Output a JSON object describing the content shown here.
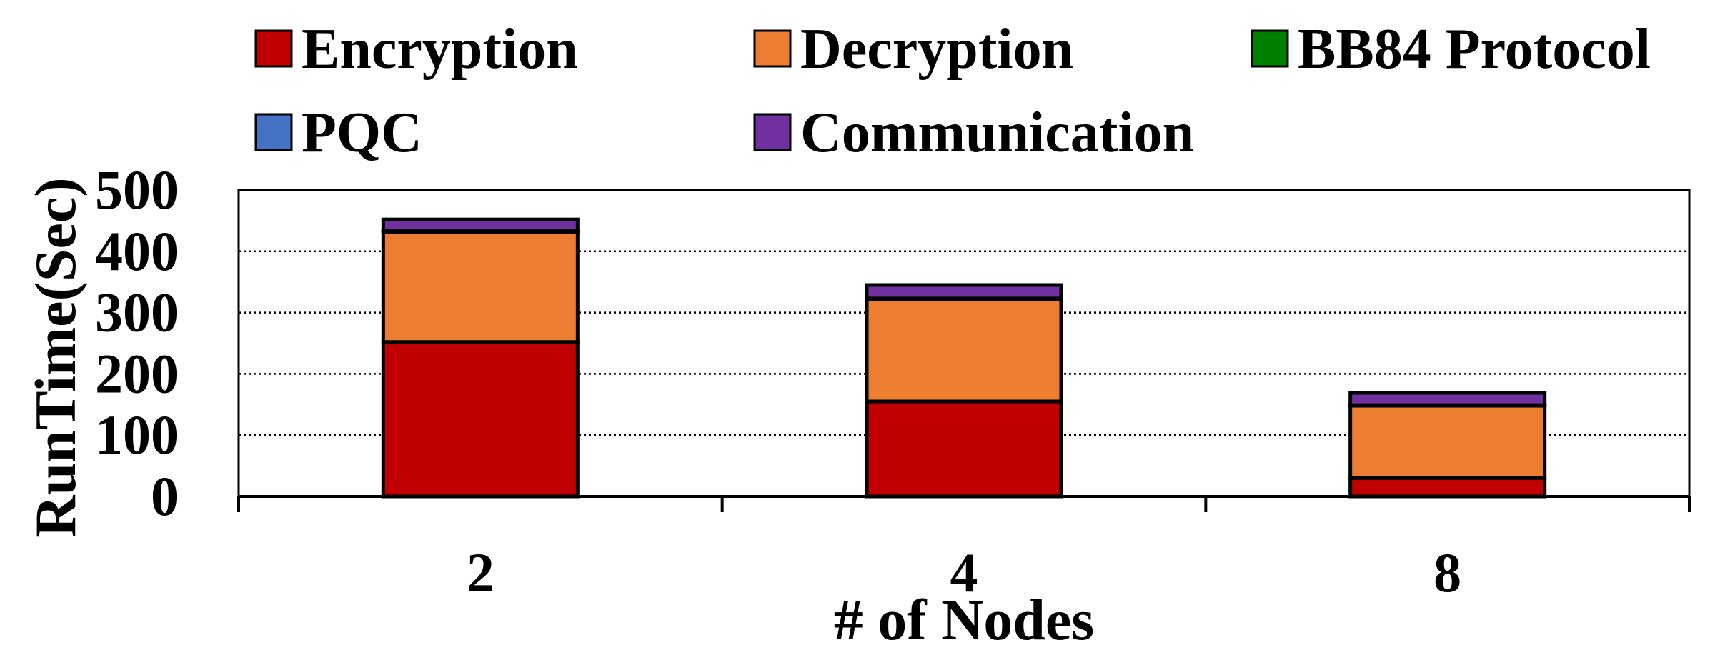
{
  "chart_data": {
    "type": "bar",
    "stacked": true,
    "categories": [
      "2",
      "4",
      "8"
    ],
    "series": [
      {
        "name": "Encryption",
        "color": "#C00000",
        "values": [
          252,
          155,
          30
        ]
      },
      {
        "name": "Decryption",
        "color": "#ED7D31",
        "values": [
          180,
          167,
          118
        ]
      },
      {
        "name": "BB84 Protocol",
        "color": "#008000",
        "values": [
          0.5,
          0.5,
          0.5
        ]
      },
      {
        "name": "PQC",
        "color": "#4472C4",
        "values": [
          0.5,
          0.5,
          0.5
        ]
      },
      {
        "name": "Communication",
        "color": "#7030A0",
        "values": [
          19,
          22,
          20
        ]
      }
    ],
    "xlabel": "# of Nodes",
    "ylabel": "RunTime(Sec)",
    "ylim": [
      0,
      500
    ],
    "yticks": [
      "0",
      "100",
      "200",
      "300",
      "400",
      "500"
    ],
    "grid": "horizontal dotted",
    "legend_position": "top"
  }
}
